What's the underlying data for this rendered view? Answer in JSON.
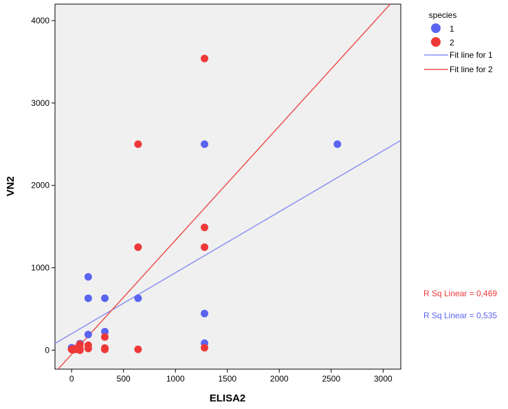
{
  "chart_data": {
    "type": "scatter",
    "xlabel": "ELISA2",
    "ylabel": "VN2",
    "xlim": [
      -160,
      3170
    ],
    "ylim": [
      -230,
      4200
    ],
    "x_ticks": [
      0,
      500,
      1000,
      1500,
      2000,
      2500,
      3000
    ],
    "y_ticks": [
      0,
      1000,
      2000,
      3000,
      4000
    ],
    "grid": false,
    "legend_placement": "right",
    "legend_title": "species",
    "series": [
      {
        "name": "1",
        "color": "#5a64f0",
        "points": [
          [
            0,
            30
          ],
          [
            20,
            20
          ],
          [
            80,
            80
          ],
          [
            160,
            890
          ],
          [
            160,
            630
          ],
          [
            160,
            190
          ],
          [
            320,
            630
          ],
          [
            320,
            225
          ],
          [
            640,
            630
          ],
          [
            1280,
            2500
          ],
          [
            1280,
            445
          ],
          [
            1280,
            85
          ],
          [
            2560,
            2500
          ]
        ],
        "fit_line": {
          "label": "Fit line for 1",
          "color": "#8a8ff0",
          "slope": 0.74,
          "intercept": 200,
          "r_squared_label": "R Sq Linear = 0,535"
        }
      },
      {
        "name": "2",
        "color": "#ee3838",
        "points": [
          [
            0,
            10
          ],
          [
            10,
            5
          ],
          [
            20,
            15
          ],
          [
            40,
            10
          ],
          [
            60,
            30
          ],
          [
            80,
            70
          ],
          [
            80,
            20
          ],
          [
            80,
            0
          ],
          [
            160,
            60
          ],
          [
            160,
            20
          ],
          [
            320,
            160
          ],
          [
            320,
            25
          ],
          [
            320,
            10
          ],
          [
            640,
            2500
          ],
          [
            640,
            1250
          ],
          [
            640,
            10
          ],
          [
            1280,
            3540
          ],
          [
            1280,
            1490
          ],
          [
            1280,
            1250
          ],
          [
            1280,
            30
          ]
        ],
        "fit_line": {
          "label": "Fit line for 2",
          "color": "#ee5050",
          "slope": 1.385,
          "intercept": -50,
          "r_squared_label": "R Sq Linear = 0,469"
        }
      }
    ]
  }
}
